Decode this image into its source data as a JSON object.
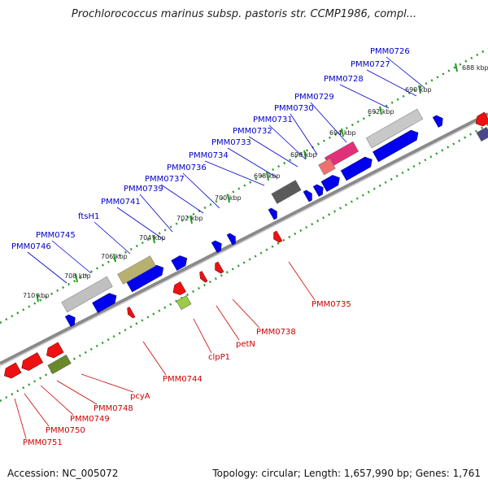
{
  "title": "Prochlorococcus marinus subsp. pastoris str. CCMP1986, compl...",
  "footer": {
    "accession": "Accession: NC_005072",
    "topology": "Topology: circular; Length: 1,657,990 bp; Genes: 1,761"
  },
  "colors": {
    "forward": "#0000ee",
    "reverse": "#ee1111",
    "backbone": "#888888",
    "tick_track": "#2a9a2a",
    "label_forward": "#0000cc",
    "label_reverse": "#cc0000"
  },
  "scale_ticks": [
    "688 kbp",
    "690 kbp",
    "692 kbp",
    "694 kbp",
    "696 kbp",
    "698 kbp",
    "700 kbp",
    "702 kbp",
    "704 kbp",
    "706 kbp",
    "708 kbp",
    "710 kbp"
  ],
  "forward_labels": [
    "PMM0726",
    "PMM0727",
    "PMM0728",
    "PMM0729",
    "PMM0730",
    "PMM0731",
    "PMM0732",
    "PMM0733",
    "PMM0734",
    "PMM0736",
    "PMM0737",
    "PMM0739",
    "PMM0741",
    "ftsH1",
    "PMM0745",
    "PMM0746"
  ],
  "reverse_labels": [
    "PMM0735",
    "PMM0738",
    "petN",
    "clpP1",
    "PMM0744",
    "pcyA",
    "PMM0748",
    "PMM0749",
    "PMM0750",
    "PMM0751"
  ]
}
